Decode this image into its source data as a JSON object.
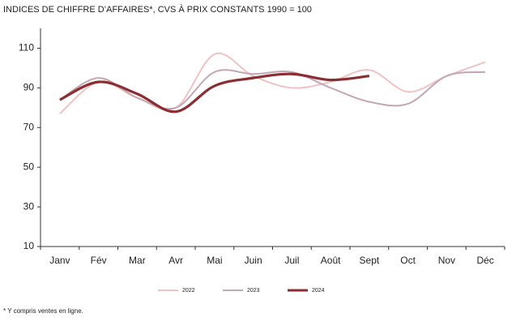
{
  "chart_data": {
    "type": "line",
    "title": "INDICES DE CHIFFRE D’AFFAIRES*, CVS À PRIX CONSTANTS 1990 = 100",
    "categories": [
      "Janv",
      "Fév",
      "Mar",
      "Avr",
      "Mai",
      "Juin",
      "Juil",
      "Août",
      "Sept",
      "Oct",
      "Nov",
      "Déc"
    ],
    "series": [
      {
        "name": "2022",
        "color": "#efc3c3",
        "values": [
          77,
          93,
          85,
          80,
          107,
          96,
          90,
          93,
          99,
          88,
          96,
          103
        ]
      },
      {
        "name": "2023",
        "color": "#c4a7b4",
        "values": [
          84,
          95,
          85,
          80,
          98,
          97,
          98,
          90,
          83,
          82,
          96,
          98
        ]
      },
      {
        "name": "2024",
        "color": "#8b2e32",
        "values": [
          84,
          93,
          87,
          78,
          91,
          95,
          97,
          94,
          96,
          null,
          null,
          null
        ]
      }
    ],
    "ylim": [
      10,
      120
    ],
    "yticks": [
      10,
      30,
      50,
      70,
      90,
      110
    ],
    "legend": "bottom",
    "footnote": "* Y compris ventes en ligne."
  }
}
